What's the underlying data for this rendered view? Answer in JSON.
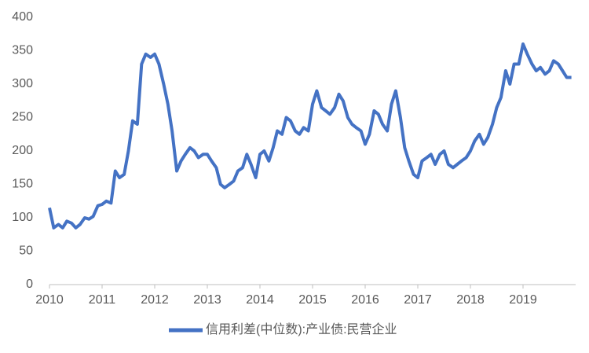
{
  "chart_data": {
    "type": "line",
    "x": [
      2010,
      2010.08,
      2010.17,
      2010.25,
      2010.33,
      2010.42,
      2010.5,
      2010.58,
      2010.67,
      2010.75,
      2010.83,
      2010.92,
      2011,
      2011.08,
      2011.17,
      2011.25,
      2011.33,
      2011.42,
      2011.5,
      2011.58,
      2011.67,
      2011.75,
      2011.83,
      2011.92,
      2012,
      2012.08,
      2012.17,
      2012.25,
      2012.33,
      2012.42,
      2012.5,
      2012.58,
      2012.67,
      2012.75,
      2012.83,
      2012.92,
      2013,
      2013.08,
      2013.17,
      2013.25,
      2013.33,
      2013.42,
      2013.5,
      2013.58,
      2013.67,
      2013.75,
      2013.83,
      2013.92,
      2014,
      2014.08,
      2014.17,
      2014.25,
      2014.33,
      2014.42,
      2014.5,
      2014.58,
      2014.67,
      2014.75,
      2014.83,
      2014.92,
      2015,
      2015.08,
      2015.17,
      2015.25,
      2015.33,
      2015.42,
      2015.5,
      2015.58,
      2015.67,
      2015.75,
      2015.83,
      2015.92,
      2016,
      2016.08,
      2016.17,
      2016.25,
      2016.33,
      2016.42,
      2016.5,
      2016.58,
      2016.67,
      2016.75,
      2016.83,
      2016.92,
      2017,
      2017.08,
      2017.17,
      2017.25,
      2017.33,
      2017.42,
      2017.5,
      2017.58,
      2017.67,
      2017.75,
      2017.83,
      2017.92,
      2018,
      2018.08,
      2018.17,
      2018.25,
      2018.33,
      2018.42,
      2018.5,
      2018.58,
      2018.67,
      2018.75,
      2018.83,
      2018.92,
      2019,
      2019.08,
      2019.17,
      2019.25,
      2019.33,
      2019.42,
      2019.5,
      2019.58,
      2019.67,
      2019.75,
      2019.83,
      2019.92
    ],
    "series": [
      {
        "name": "信用利差(中位数):产业债:民营企业",
        "color": "#4472c4",
        "values": [
          115,
          85,
          90,
          85,
          95,
          92,
          85,
          90,
          100,
          98,
          102,
          118,
          120,
          125,
          122,
          170,
          160,
          165,
          200,
          245,
          240,
          330,
          345,
          340,
          345,
          330,
          300,
          270,
          230,
          170,
          185,
          195,
          205,
          200,
          190,
          195,
          195,
          185,
          175,
          150,
          145,
          150,
          155,
          170,
          175,
          195,
          180,
          160,
          195,
          200,
          185,
          205,
          230,
          225,
          250,
          245,
          230,
          225,
          235,
          230,
          270,
          290,
          265,
          260,
          255,
          265,
          285,
          275,
          250,
          240,
          235,
          230,
          210,
          225,
          260,
          255,
          240,
          230,
          270,
          290,
          250,
          205,
          185,
          165,
          160,
          185,
          190,
          195,
          180,
          195,
          200,
          180,
          175,
          180,
          185,
          190,
          200,
          215,
          225,
          210,
          220,
          240,
          265,
          280,
          320,
          300,
          330,
          330,
          360,
          345,
          330,
          320,
          325,
          315,
          320,
          335,
          330,
          320,
          310,
          310
        ]
      }
    ],
    "xlim": [
      2010,
      2020
    ],
    "xticks": [
      2010,
      2011,
      2012,
      2013,
      2014,
      2015,
      2016,
      2017,
      2018,
      2019
    ],
    "ylim": [
      0,
      400
    ],
    "yticks": [
      0,
      50,
      100,
      150,
      200,
      250,
      300,
      350,
      400
    ],
    "grid": false,
    "legend": "bottom"
  }
}
